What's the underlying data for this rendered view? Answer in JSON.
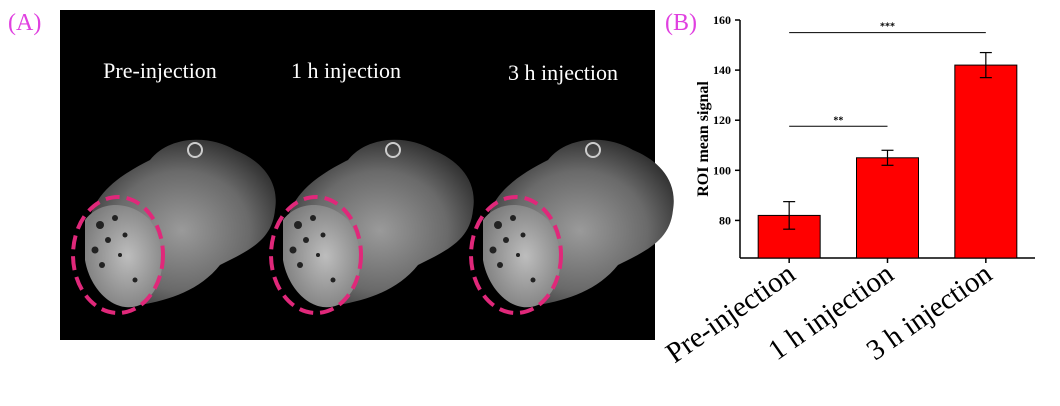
{
  "panel_a": {
    "label": "(A)",
    "captions": [
      "Pre-injection",
      "1 h injection",
      "3 h injection"
    ]
  },
  "chart_data": {
    "type": "bar",
    "panel_label": "(B)",
    "y_label": "ROI mean signal",
    "categories": [
      "Pre-injection",
      "1 h injection",
      "3 h injection"
    ],
    "values": [
      82,
      105,
      142
    ],
    "errors": [
      5.5,
      3,
      5
    ],
    "color": "#ff0000",
    "ylim": [
      65,
      160
    ],
    "yticks": [
      80,
      100,
      120,
      140,
      160
    ],
    "annotations": [
      "**",
      "***"
    ]
  }
}
